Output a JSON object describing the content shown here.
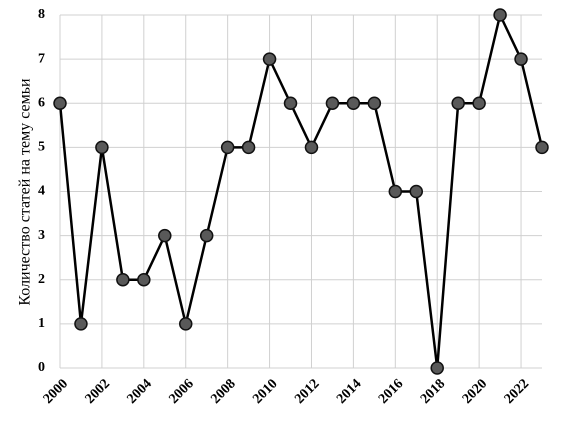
{
  "chart_data": {
    "type": "line",
    "y_label": "Количество статей на тему семьи",
    "x": [
      2000,
      2001,
      2002,
      2003,
      2004,
      2005,
      2006,
      2007,
      2008,
      2009,
      2010,
      2011,
      2012,
      2013,
      2014,
      2015,
      2016,
      2017,
      2018,
      2019,
      2020,
      2021,
      2022,
      2023
    ],
    "series": [
      {
        "color": "#000000",
        "marker_color": "#595959",
        "values": [
          6,
          1,
          5,
          2,
          2,
          3,
          1,
          3,
          5,
          5,
          7,
          6,
          5,
          6,
          6,
          6,
          4,
          4,
          0,
          6,
          6,
          8,
          7,
          5
        ]
      }
    ],
    "xlim": [
      2000,
      2023
    ],
    "xticks": [
      2000,
      2002,
      2004,
      2006,
      2008,
      2010,
      2012,
      2014,
      2016,
      2018,
      2020,
      2022
    ],
    "ylim": [
      0,
      8
    ],
    "yticks": [
      0,
      1,
      2,
      3,
      4,
      5,
      6,
      7,
      8
    ],
    "grid": true
  }
}
